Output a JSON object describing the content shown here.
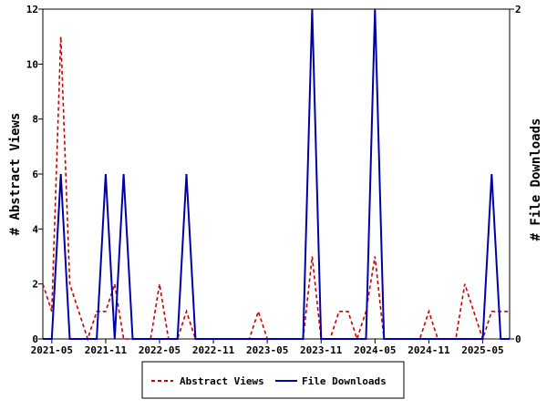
{
  "chart_data": {
    "type": "line",
    "title": "",
    "x_tick_labels": [
      "2021-05",
      "2021-11",
      "2022-05",
      "2022-11",
      "2023-05",
      "2023-11",
      "2024-05",
      "2024-11",
      "2025-05"
    ],
    "x": [
      "2021-04",
      "2021-05",
      "2021-06",
      "2021-07",
      "2021-08",
      "2021-09",
      "2021-10",
      "2021-11",
      "2021-12",
      "2022-01",
      "2022-02",
      "2022-03",
      "2022-04",
      "2022-05",
      "2022-06",
      "2022-07",
      "2022-08",
      "2022-09",
      "2022-10",
      "2022-11",
      "2022-12",
      "2023-01",
      "2023-02",
      "2023-03",
      "2023-04",
      "2023-05",
      "2023-06",
      "2023-07",
      "2023-08",
      "2023-09",
      "2023-10",
      "2023-11",
      "2023-12",
      "2024-01",
      "2024-02",
      "2024-03",
      "2024-04",
      "2024-05",
      "2024-06",
      "2024-07",
      "2024-08",
      "2024-09",
      "2024-10",
      "2024-11",
      "2024-12",
      "2025-01",
      "2025-02",
      "2025-03",
      "2025-04",
      "2025-05",
      "2025-06",
      "2025-07",
      "2025-08"
    ],
    "left_axis": {
      "label": "# Abstract Views",
      "ylim": [
        0,
        12
      ],
      "ticks": [
        0,
        2,
        4,
        6,
        8,
        10,
        12
      ]
    },
    "right_axis": {
      "label": "# File Downloads",
      "ylim": [
        0,
        2
      ],
      "ticks": [
        0,
        2
      ]
    },
    "series": [
      {
        "name": "Abstract Views",
        "axis": "left",
        "color": "#cc0000",
        "style": "dashed",
        "values": [
          2,
          1,
          11,
          2,
          1,
          0,
          1,
          1,
          2,
          0,
          0,
          0,
          0,
          2,
          0,
          0,
          1,
          0,
          0,
          0,
          0,
          0,
          0,
          0,
          1,
          0,
          0,
          0,
          0,
          0,
          3,
          0,
          0,
          1,
          1,
          0,
          1,
          3,
          0,
          0,
          0,
          0,
          0,
          1,
          0,
          0,
          0,
          2,
          1,
          0,
          1,
          1,
          1
        ]
      },
      {
        "name": "File Downloads",
        "axis": "right",
        "color": "#0000aa",
        "style": "solid",
        "values": [
          0,
          0,
          1,
          0,
          0,
          0,
          0,
          1,
          0,
          1,
          0,
          0,
          0,
          0,
          0,
          0,
          1,
          0,
          0,
          0,
          0,
          0,
          0,
          0,
          0,
          0,
          0,
          0,
          0,
          0,
          2,
          0,
          0,
          0,
          0,
          0,
          0,
          2,
          0,
          0,
          0,
          0,
          0,
          0,
          0,
          0,
          0,
          0,
          0,
          0,
          1,
          0,
          0
        ]
      }
    ],
    "legend": {
      "position": "bottom",
      "entries": [
        "Abstract Views",
        "File Downloads"
      ]
    },
    "grid": false
  }
}
